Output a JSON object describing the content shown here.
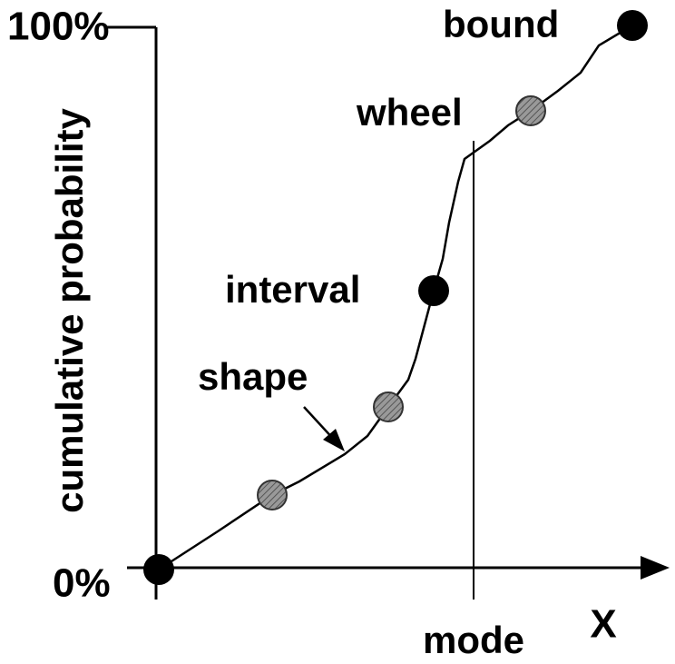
{
  "axes": {
    "y_label": "cumulative probability",
    "x_label": "X",
    "y_top": "100%",
    "y_bottom": "0%",
    "x_mark": "mode"
  },
  "annotations": {
    "bound": "bound",
    "wheel": "wheel",
    "interval": "interval",
    "shape": "shape"
  }
}
